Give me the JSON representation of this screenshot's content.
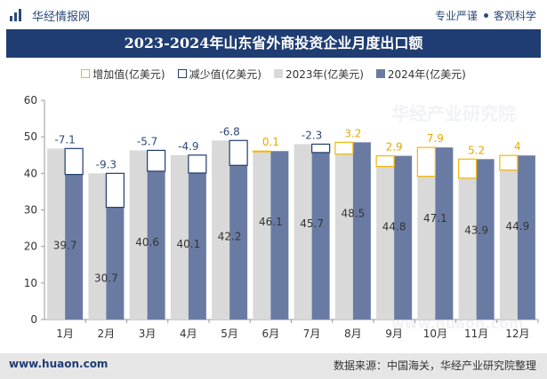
{
  "brand": {
    "name": "华经情报网",
    "logo_icon": "brand-logo-icon"
  },
  "tags": [
    "专业严谨",
    "客观科学"
  ],
  "footer": {
    "website": "www.huaon.com",
    "source": "数据来源：中国海关，华经产业研究院整理"
  },
  "watermark": [
    "华经产业研究院",
    "www.huaon.com"
  ],
  "colors": {
    "increase": "#f5b700",
    "decrease": "#1f3d72",
    "y2023": "#d9d9d9",
    "y2024": "#6a7ba3",
    "title_bg": "#1f3d72"
  },
  "chart_data": {
    "type": "bar",
    "title": "2023-2024年山东省外商投资企业月度出口额",
    "categories": [
      "1月",
      "2月",
      "3月",
      "4月",
      "5月",
      "6月",
      "7月",
      "8月",
      "9月",
      "10月",
      "11月",
      "12月"
    ],
    "series": [
      {
        "name": "2023年(亿美元)",
        "values": [
          46.8,
          40.0,
          46.3,
          45.0,
          49.0,
          46.0,
          48.0,
          45.3,
          41.9,
          39.2,
          38.7,
          40.9
        ]
      },
      {
        "name": "2024年(亿美元)",
        "values": [
          39.7,
          30.7,
          40.6,
          40.1,
          42.2,
          46.1,
          45.7,
          48.5,
          44.8,
          47.1,
          43.9,
          44.9
        ]
      }
    ],
    "change": [
      -7.1,
      -9.3,
      -5.7,
      -4.9,
      -6.8,
      0.1,
      -2.3,
      3.2,
      2.9,
      7.9,
      5.2,
      4
    ],
    "legend": [
      "增加值(亿美元)",
      "减少值(亿美元)",
      "2023年(亿美元)",
      "2024年(亿美元)"
    ],
    "ylim": [
      0,
      60
    ],
    "yticks": [
      0,
      10,
      20,
      30,
      40,
      50,
      60
    ],
    "xlabel": "",
    "ylabel": "",
    "grid": false,
    "legend_position": "top"
  }
}
